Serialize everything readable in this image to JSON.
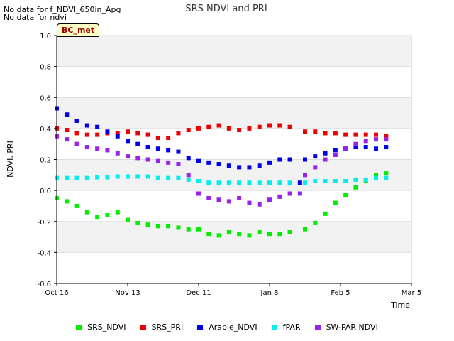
{
  "notes": [
    "No data for f_NDVI_650in_Apg",
    "No data for ndvi"
  ],
  "site_label": "BC_met",
  "chart_data": {
    "type": "scatter",
    "title": "SRS NDVI and PRI",
    "xlabel": "Time",
    "ylabel": "NDVI, PRI",
    "ylim": [
      -0.6,
      1.0
    ],
    "yticks": [
      "-0.6",
      "-0.4",
      "-0.2",
      "0.0",
      "0.2",
      "0.4",
      "0.6",
      "0.8",
      "1.0"
    ],
    "xticks": [
      "Oct 16",
      "Nov 13",
      "Dec 11",
      "Jan 8",
      "Feb 5",
      "Mar 5"
    ],
    "legend_position": "bottom",
    "series": [
      {
        "name": "SRS_NDVI",
        "color": "#00ee00",
        "points": [
          [
            0,
            -0.05
          ],
          [
            4,
            -0.07
          ],
          [
            8,
            -0.1
          ],
          [
            12,
            -0.14
          ],
          [
            16,
            -0.17
          ],
          [
            20,
            -0.16
          ],
          [
            24,
            -0.14
          ],
          [
            28,
            -0.19
          ],
          [
            32,
            -0.21
          ],
          [
            36,
            -0.22
          ],
          [
            40,
            -0.23
          ],
          [
            44,
            -0.23
          ],
          [
            48,
            -0.24
          ],
          [
            52,
            -0.25
          ],
          [
            56,
            -0.25
          ],
          [
            60,
            -0.28
          ],
          [
            64,
            -0.29
          ],
          [
            68,
            -0.27
          ],
          [
            72,
            -0.28
          ],
          [
            76,
            -0.29
          ],
          [
            80,
            -0.27
          ],
          [
            84,
            -0.28
          ],
          [
            88,
            -0.28
          ],
          [
            92,
            -0.27
          ],
          [
            98,
            -0.25
          ],
          [
            102,
            -0.21
          ],
          [
            106,
            -0.15
          ],
          [
            110,
            -0.08
          ],
          [
            114,
            -0.03
          ],
          [
            118,
            0.02
          ],
          [
            122,
            0.06
          ],
          [
            126,
            0.1
          ],
          [
            130,
            0.11
          ]
        ]
      },
      {
        "name": "SRS_PRI",
        "color": "#ee0000",
        "points": [
          [
            0,
            0.4
          ],
          [
            4,
            0.39
          ],
          [
            8,
            0.37
          ],
          [
            12,
            0.36
          ],
          [
            16,
            0.36
          ],
          [
            20,
            0.37
          ],
          [
            24,
            0.37
          ],
          [
            28,
            0.38
          ],
          [
            32,
            0.37
          ],
          [
            36,
            0.36
          ],
          [
            40,
            0.34
          ],
          [
            44,
            0.34
          ],
          [
            48,
            0.37
          ],
          [
            52,
            0.39
          ],
          [
            56,
            0.4
          ],
          [
            60,
            0.41
          ],
          [
            64,
            0.42
          ],
          [
            68,
            0.4
          ],
          [
            72,
            0.39
          ],
          [
            76,
            0.4
          ],
          [
            80,
            0.41
          ],
          [
            84,
            0.42
          ],
          [
            88,
            0.42
          ],
          [
            92,
            0.41
          ],
          [
            98,
            0.38
          ],
          [
            102,
            0.38
          ],
          [
            106,
            0.37
          ],
          [
            110,
            0.37
          ],
          [
            114,
            0.36
          ],
          [
            118,
            0.36
          ],
          [
            122,
            0.36
          ],
          [
            126,
            0.36
          ],
          [
            130,
            0.35
          ]
        ]
      },
      {
        "name": "Arable_NDVI",
        "color": "#0000ee",
        "points": [
          [
            0,
            0.53
          ],
          [
            4,
            0.49
          ],
          [
            8,
            0.45
          ],
          [
            12,
            0.42
          ],
          [
            16,
            0.41
          ],
          [
            20,
            0.38
          ],
          [
            24,
            0.35
          ],
          [
            28,
            0.32
          ],
          [
            32,
            0.3
          ],
          [
            36,
            0.28
          ],
          [
            40,
            0.27
          ],
          [
            44,
            0.26
          ],
          [
            48,
            0.25
          ],
          [
            52,
            0.21
          ],
          [
            56,
            0.19
          ],
          [
            60,
            0.18
          ],
          [
            64,
            0.17
          ],
          [
            68,
            0.16
          ],
          [
            72,
            0.15
          ],
          [
            76,
            0.15
          ],
          [
            80,
            0.16
          ],
          [
            84,
            0.18
          ],
          [
            88,
            0.2
          ],
          [
            92,
            0.2
          ],
          [
            96,
            0.05
          ],
          [
            98,
            0.2
          ],
          [
            102,
            0.22
          ],
          [
            106,
            0.24
          ],
          [
            110,
            0.26
          ],
          [
            114,
            0.27
          ],
          [
            118,
            0.28
          ],
          [
            122,
            0.28
          ],
          [
            126,
            0.27
          ],
          [
            130,
            0.28
          ]
        ]
      },
      {
        "name": "fPAR",
        "color": "#00eeee",
        "points": [
          [
            0,
            0.08
          ],
          [
            4,
            0.08
          ],
          [
            8,
            0.08
          ],
          [
            12,
            0.08
          ],
          [
            16,
            0.085
          ],
          [
            20,
            0.085
          ],
          [
            24,
            0.09
          ],
          [
            28,
            0.09
          ],
          [
            32,
            0.09
          ],
          [
            36,
            0.09
          ],
          [
            40,
            0.08
          ],
          [
            44,
            0.08
          ],
          [
            48,
            0.08
          ],
          [
            52,
            0.07
          ],
          [
            56,
            0.06
          ],
          [
            60,
            0.05
          ],
          [
            64,
            0.05
          ],
          [
            68,
            0.05
          ],
          [
            72,
            0.05
          ],
          [
            76,
            0.05
          ],
          [
            80,
            0.05
          ],
          [
            84,
            0.05
          ],
          [
            88,
            0.05
          ],
          [
            92,
            0.05
          ],
          [
            98,
            0.05
          ],
          [
            102,
            0.06
          ],
          [
            106,
            0.06
          ],
          [
            110,
            0.06
          ],
          [
            114,
            0.06
          ],
          [
            118,
            0.07
          ],
          [
            122,
            0.07
          ],
          [
            126,
            0.08
          ],
          [
            130,
            0.08
          ]
        ]
      },
      {
        "name": "SW-PAR NDVI",
        "color": "#9922ee",
        "points": [
          [
            0,
            0.35
          ],
          [
            4,
            0.33
          ],
          [
            8,
            0.3
          ],
          [
            12,
            0.28
          ],
          [
            16,
            0.27
          ],
          [
            20,
            0.26
          ],
          [
            24,
            0.24
          ],
          [
            28,
            0.22
          ],
          [
            32,
            0.21
          ],
          [
            36,
            0.2
          ],
          [
            40,
            0.19
          ],
          [
            44,
            0.18
          ],
          [
            48,
            0.17
          ],
          [
            52,
            0.1
          ],
          [
            56,
            -0.02
          ],
          [
            60,
            -0.05
          ],
          [
            64,
            -0.06
          ],
          [
            68,
            -0.07
          ],
          [
            72,
            -0.05
          ],
          [
            76,
            -0.08
          ],
          [
            80,
            -0.09
          ],
          [
            84,
            -0.06
          ],
          [
            88,
            -0.04
          ],
          [
            92,
            -0.02
          ],
          [
            96,
            -0.02
          ],
          [
            98,
            0.1
          ],
          [
            102,
            0.15
          ],
          [
            106,
            0.2
          ],
          [
            110,
            0.23
          ],
          [
            114,
            0.27
          ],
          [
            118,
            0.3
          ],
          [
            122,
            0.32
          ],
          [
            126,
            0.33
          ],
          [
            130,
            0.33
          ]
        ]
      }
    ],
    "x_range_days": [
      0,
      140
    ]
  }
}
